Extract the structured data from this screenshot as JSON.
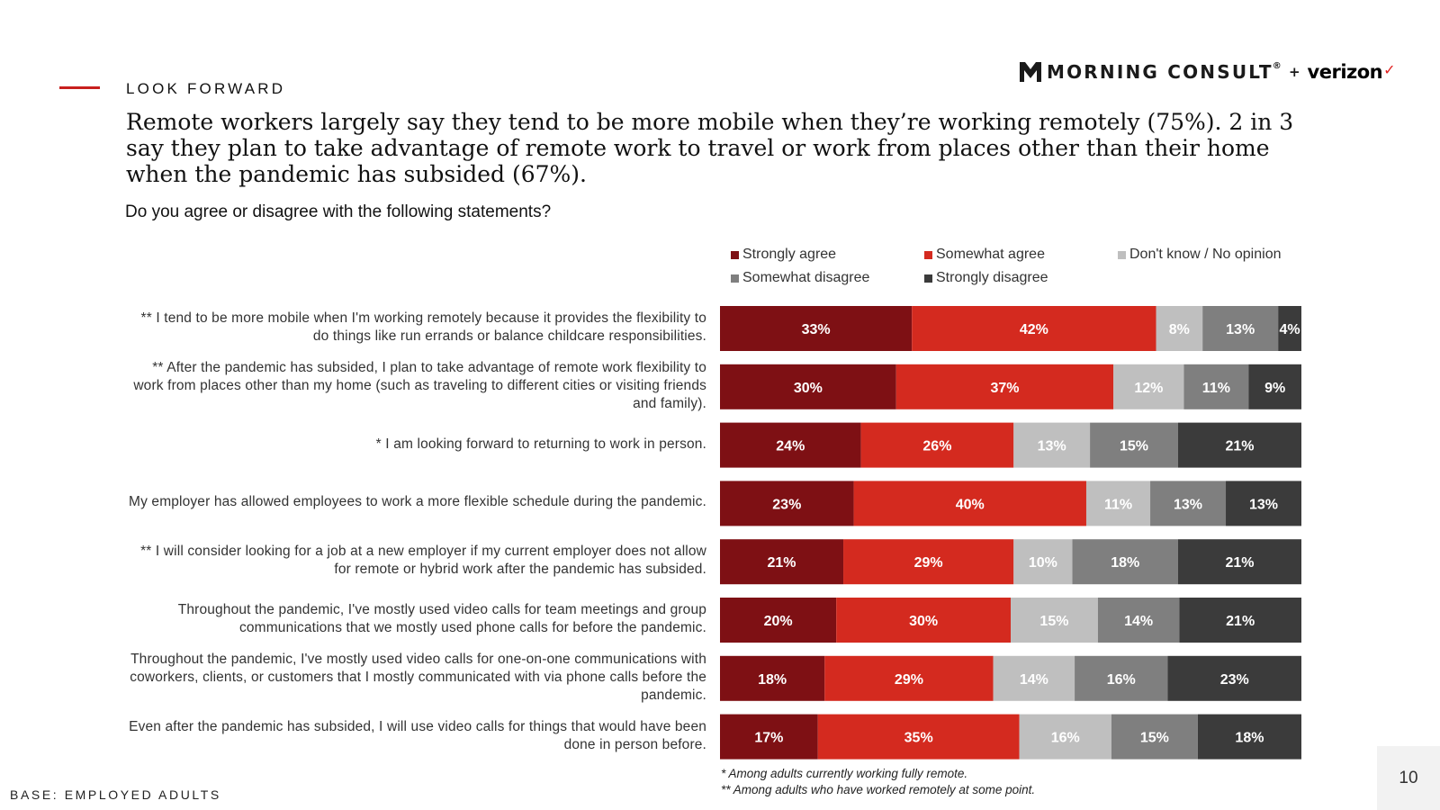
{
  "section": "LOOK FORWARD",
  "logo": {
    "brand": "MORNING CONSULT",
    "reg": "®",
    "plus": "+",
    "partner": "verizon",
    "check": "✓"
  },
  "headline": "Remote workers largely say they tend to be more mobile when they’re working remotely (75%). 2 in 3 say they plan to take advantage of remote work to travel or work from places other than their home when the pandemic has subsided (67%).",
  "question": "Do you agree or disagree with the following statements?",
  "colors": {
    "strongly_agree": "#7e1014",
    "somewhat_agree": "#d42a1f",
    "dont_know": "#bfbfbf",
    "somewhat_disagree": "#7f7f7f",
    "strongly_disagree": "#3b3b3b",
    "accent": "#c8201e"
  },
  "chart_data": {
    "type": "bar",
    "orientation": "horizontal",
    "stacked": true,
    "unit": "%",
    "legend_position": "top",
    "series_names": [
      "Strongly agree",
      "Somewhat agree",
      "Don't know / No opinion",
      "Somewhat disagree",
      "Strongly disagree"
    ],
    "categories": [
      "** I tend to be more mobile when I'm working remotely because it provides the flexibility to do things like run errands or balance childcare responsibilities.",
      "** After the pandemic has subsided, I plan to take advantage of remote work flexibility to work from places other than my home (such as traveling to different cities or visiting friends and family).",
      "* I am looking forward to returning to work in person.",
      "My employer has allowed employees to work a more flexible schedule during the pandemic.",
      "** I will consider looking for a job at a new employer if my current employer does not allow for remote or hybrid work after the pandemic has subsided.",
      "Throughout the pandemic, I've mostly used video calls for team meetings and group communications that we mostly used phone calls for before the pandemic.",
      "Throughout the pandemic, I've mostly used video calls for one-on-one communications with coworkers, clients, or customers that I mostly communicated with via phone calls before the pandemic.",
      "Even after the pandemic has subsided, I will use video calls for things that would have been done in person before."
    ],
    "values": [
      [
        33,
        42,
        8,
        13,
        4
      ],
      [
        30,
        37,
        12,
        11,
        9
      ],
      [
        24,
        26,
        13,
        15,
        21
      ],
      [
        23,
        40,
        11,
        13,
        13
      ],
      [
        21,
        29,
        10,
        18,
        21
      ],
      [
        20,
        30,
        15,
        14,
        21
      ],
      [
        18,
        29,
        14,
        16,
        23
      ],
      [
        17,
        35,
        16,
        15,
        18
      ]
    ]
  },
  "footnotes": [
    "* Among adults currently working fully remote.",
    "** Among adults who have worked remotely at some point."
  ],
  "base": "BASE: EMPLOYED ADULTS",
  "page_number": "10"
}
